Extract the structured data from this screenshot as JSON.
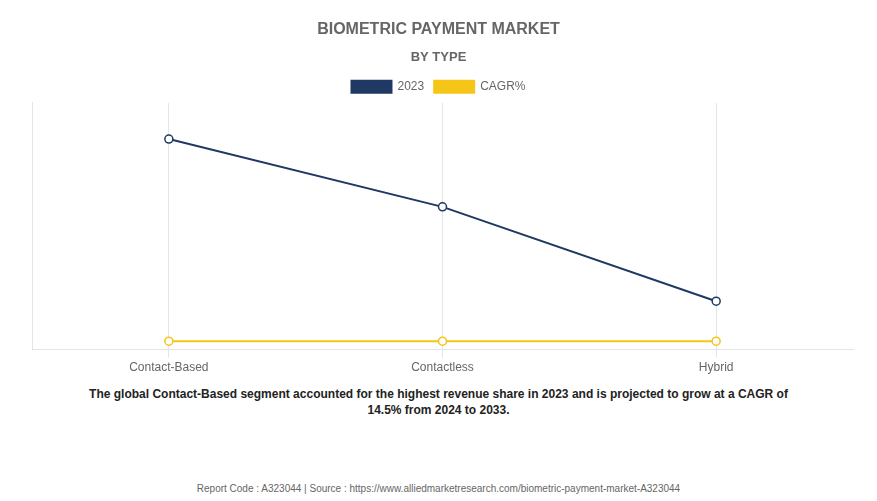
{
  "chart_data": {
    "type": "line",
    "title": "BIOMETRIC PAYMENT MARKET",
    "subtitle": "BY TYPE",
    "categories": [
      "Contact-Based",
      "Contactless",
      "Hybrid"
    ],
    "series": [
      {
        "name": "2023",
        "color": "#1f3864",
        "marker": "circle",
        "values": [
          0.85,
          0.57,
          0.18
        ]
      },
      {
        "name": "CAGR%",
        "color": "#f5c518",
        "marker": "circle",
        "values": [
          0.015,
          0.015,
          0.015
        ]
      }
    ],
    "ylim": [
      -0.02,
      1.0
    ],
    "tick_labels": "x",
    "grid": "x",
    "legend": "top",
    "annotations": [
      "The global Contact-Based segment accounted for the highest revenue share in 2023 and is projected to grow at a CAGR of\n14.5% from 2024 to 2033.",
      "Report Code : A323044  |  Source : https://www.alliedmarketresearch.com/biometric-payment-market-A323044"
    ]
  }
}
